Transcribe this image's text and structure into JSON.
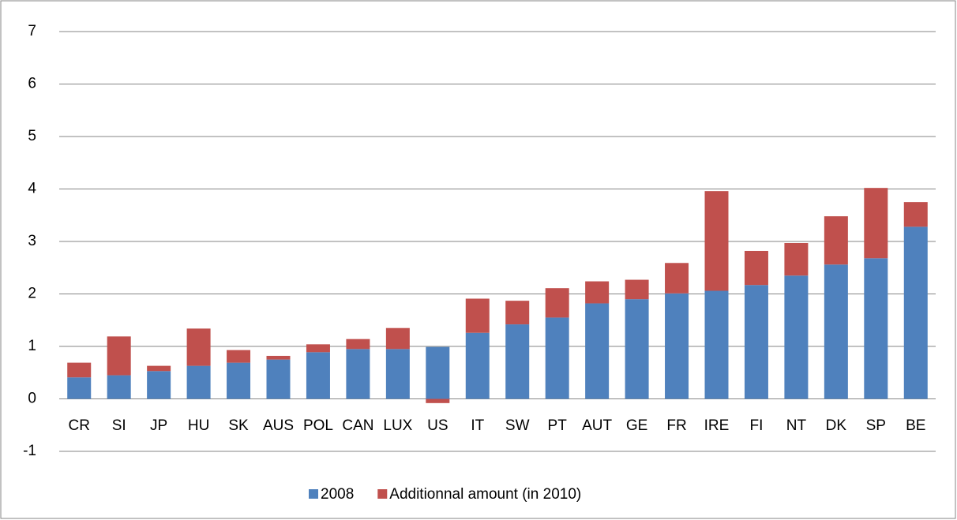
{
  "chart_data": {
    "type": "stacked_bar",
    "categories": [
      "CR",
      "SI",
      "JP",
      "HU",
      "SK",
      "AUS",
      "POL",
      "CAN",
      "LUX",
      "US",
      "IT",
      "SW",
      "PT",
      "AUT",
      "GE",
      "FR",
      "IRE",
      "FI",
      "NT",
      "DK",
      "SP",
      "BE"
    ],
    "series": [
      {
        "name": "2008",
        "color": "#4f81bd",
        "values": [
          0.41,
          0.45,
          0.53,
          0.63,
          0.69,
          0.75,
          0.89,
          0.95,
          0.95,
          0.99,
          1.26,
          1.42,
          1.55,
          1.82,
          1.9,
          2.01,
          2.06,
          2.17,
          2.35,
          2.56,
          2.68,
          3.28
        ]
      },
      {
        "name": "Additionnal amount (in 2010)",
        "color": "#c0504d",
        "values": [
          0.28,
          0.74,
          0.1,
          0.71,
          0.24,
          0.07,
          0.15,
          0.19,
          0.4,
          -0.08,
          0.65,
          0.45,
          0.56,
          0.42,
          0.37,
          0.58,
          1.9,
          0.65,
          0.62,
          0.92,
          1.34,
          0.47
        ]
      }
    ],
    "ylim": [
      -1,
      7
    ],
    "yticks": [
      -1,
      0,
      1,
      2,
      3,
      4,
      5,
      6,
      7
    ],
    "grid": true,
    "legend": "bottom"
  }
}
